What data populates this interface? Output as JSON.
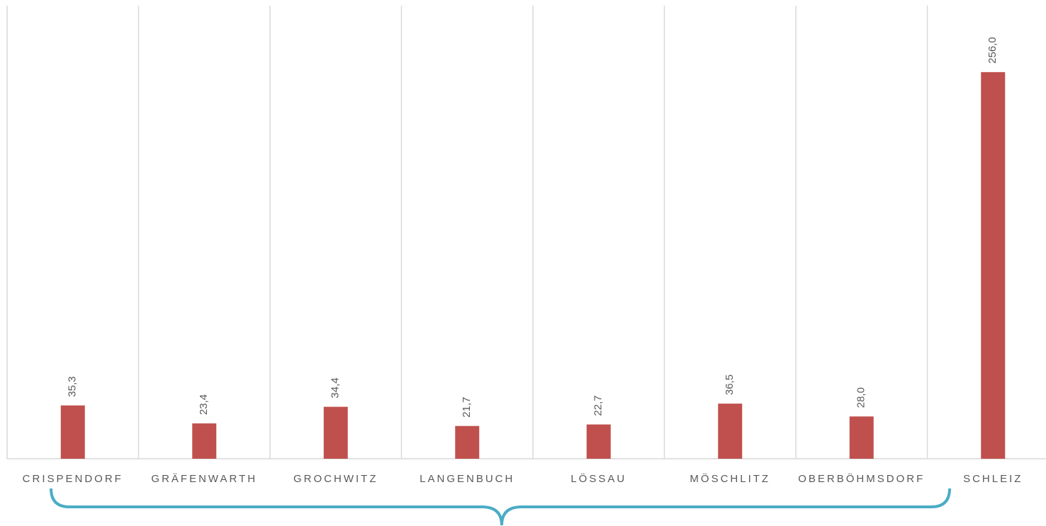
{
  "chart_data": {
    "type": "bar",
    "categories": [
      "CRISPENDORF",
      "GRÄFENWARTH",
      "GROCHWITZ",
      "LANGENBUCH",
      "LÖSSAU",
      "MÖSCHLITZ",
      "OBERBÖHMSDORF",
      "SCHLEIZ"
    ],
    "values": [
      35.3,
      23.4,
      34.4,
      21.7,
      22.7,
      36.5,
      28.0,
      256.0
    ],
    "value_labels": [
      "35,3",
      "23,4",
      "34,4",
      "21,7",
      "22,7",
      "36,5",
      "28,0",
      "256,0"
    ],
    "color": "#c0504d",
    "ylim": [
      0,
      300
    ],
    "grid": true
  }
}
